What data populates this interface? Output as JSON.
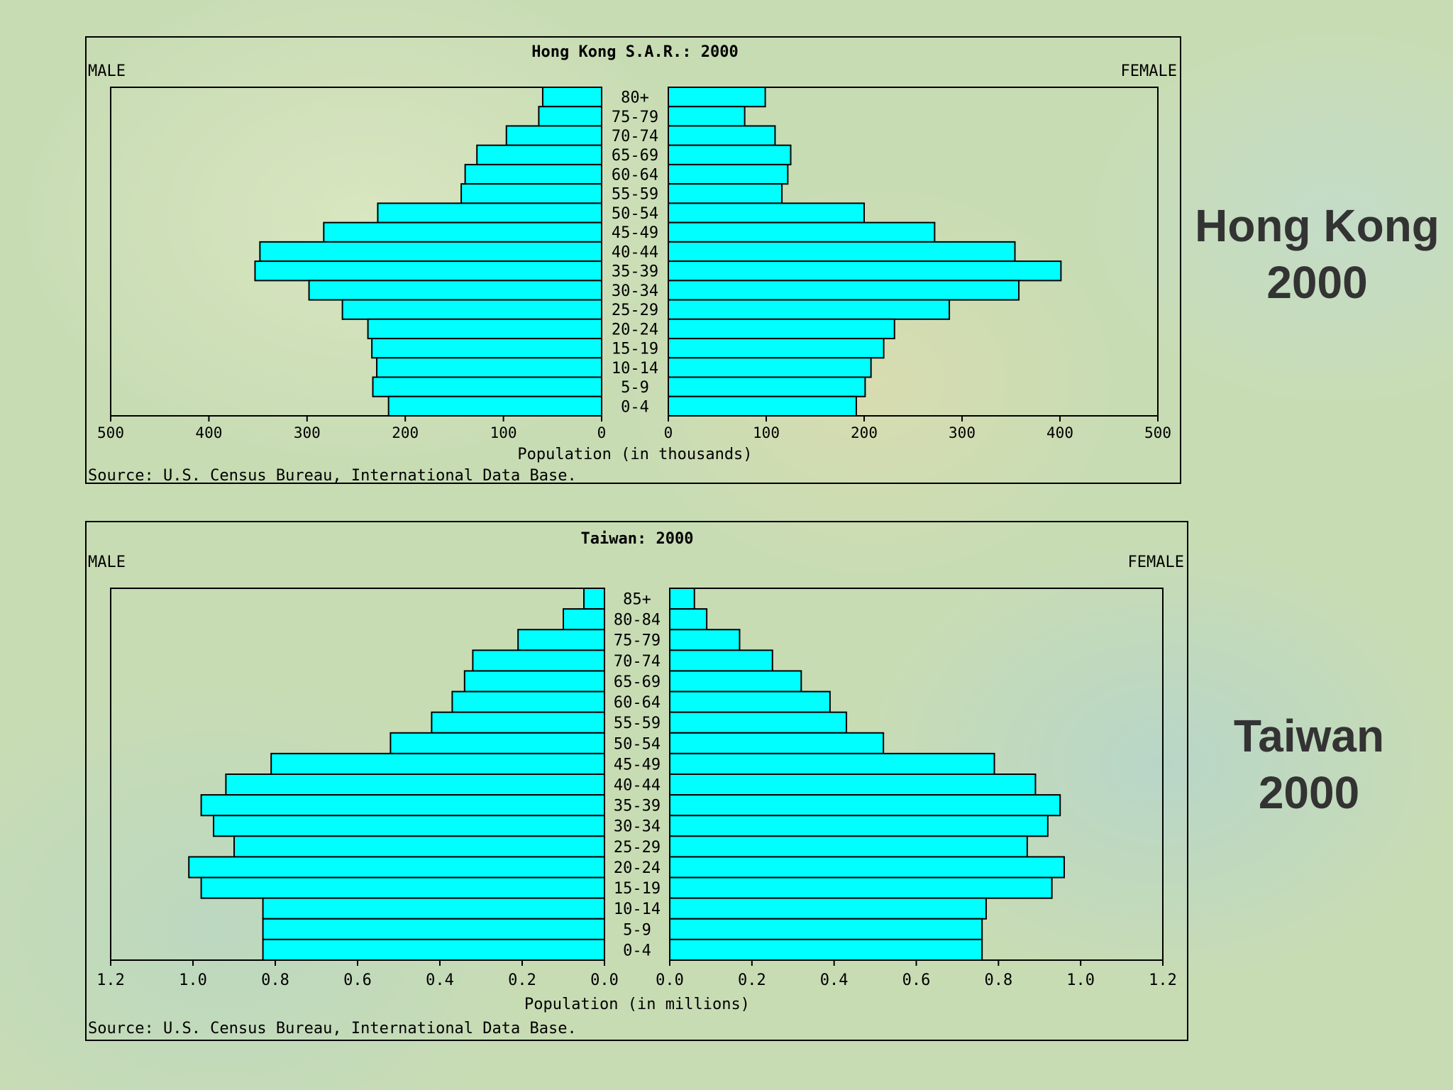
{
  "hk_label": {
    "line1": "Hong Kong",
    "line2": "2000"
  },
  "tw_label": {
    "line1": "Taiwan",
    "line2": "2000"
  },
  "bar_color": "#00ffff",
  "chart_data": [
    {
      "type": "bar",
      "orientation": "horizontal-pyramid",
      "title": "Hong Kong S.A.R.: 2000",
      "left_label": "MALE",
      "right_label": "FEMALE",
      "xlabel": "Population (in thousands)",
      "source": "Source: U.S. Census Bureau, International Data Base.",
      "xlim": [
        0,
        500
      ],
      "xticks": [
        "0",
        "100",
        "200",
        "300",
        "400",
        "500"
      ],
      "categories": [
        "80+",
        "75-79",
        "70-74",
        "65-69",
        "60-64",
        "55-59",
        "50-54",
        "45-49",
        "40-44",
        "35-39",
        "30-34",
        "25-29",
        "20-24",
        "15-19",
        "10-14",
        "5-9",
        "0-4"
      ],
      "series": [
        {
          "name": "MALE",
          "values": [
            60,
            64,
            97,
            127,
            139,
            143,
            228,
            283,
            348,
            353,
            298,
            264,
            238,
            234,
            229,
            233,
            217
          ]
        },
        {
          "name": "FEMALE",
          "values": [
            99,
            78,
            109,
            125,
            122,
            116,
            200,
            272,
            354,
            401,
            358,
            287,
            231,
            220,
            207,
            201,
            192
          ]
        }
      ]
    },
    {
      "type": "bar",
      "orientation": "horizontal-pyramid",
      "title": "Taiwan: 2000",
      "left_label": "MALE",
      "right_label": "FEMALE",
      "xlabel": "Population (in millions)",
      "source": "Source: U.S. Census Bureau, International Data Base.",
      "xlim": [
        0,
        1.2
      ],
      "xticks": [
        "0.0",
        "0.2",
        "0.4",
        "0.6",
        "0.8",
        "1.0",
        "1.2"
      ],
      "categories": [
        "85+",
        "80-84",
        "75-79",
        "70-74",
        "65-69",
        "60-64",
        "55-59",
        "50-54",
        "45-49",
        "40-44",
        "35-39",
        "30-34",
        "25-29",
        "20-24",
        "15-19",
        "10-14",
        "5-9",
        "0-4"
      ],
      "series": [
        {
          "name": "MALE",
          "values": [
            0.05,
            0.1,
            0.21,
            0.32,
            0.34,
            0.37,
            0.42,
            0.52,
            0.81,
            0.92,
            0.98,
            0.95,
            0.9,
            1.01,
            0.98,
            0.83,
            0.83,
            0.83
          ]
        },
        {
          "name": "FEMALE",
          "values": [
            0.06,
            0.09,
            0.17,
            0.25,
            0.32,
            0.39,
            0.43,
            0.52,
            0.79,
            0.89,
            0.95,
            0.92,
            0.87,
            0.96,
            0.93,
            0.77,
            0.76,
            0.76
          ]
        }
      ]
    }
  ]
}
